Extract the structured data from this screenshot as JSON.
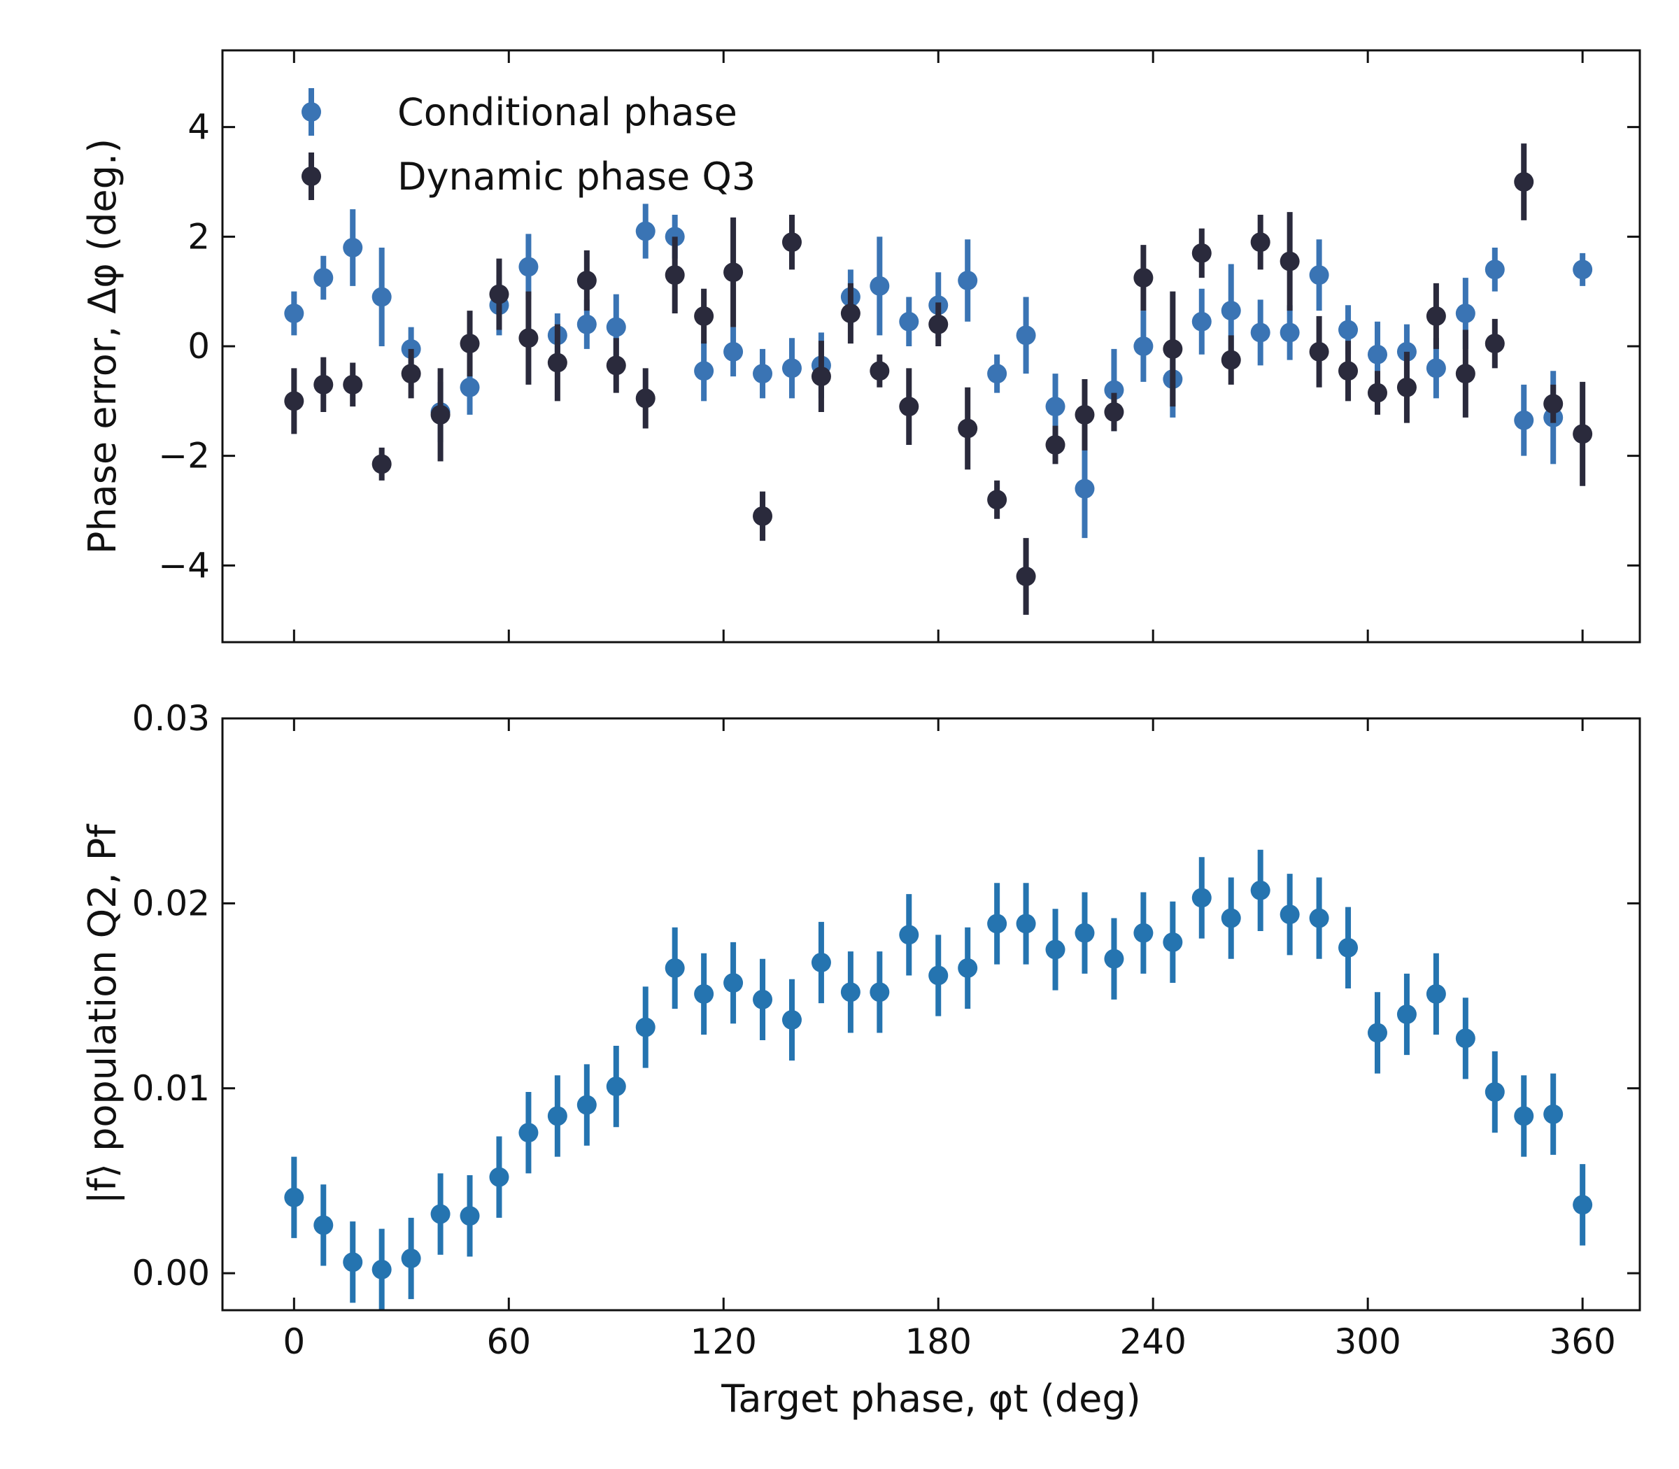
{
  "figure": {
    "x_axis_label": "Target phase, φt (deg)"
  },
  "chart_data": [
    {
      "type": "scatter",
      "panel": "top",
      "ylabel": "Phase error, Δφ (deg.)",
      "xlim": [
        -20,
        376
      ],
      "ylim": [
        -5.4,
        5.4
      ],
      "xticks": [
        0,
        60,
        120,
        180,
        240,
        300,
        360
      ],
      "yticks": [
        -4,
        -2,
        0,
        2,
        4
      ],
      "ytick_labels": [
        "−4",
        "−2",
        "0",
        "2",
        "4"
      ],
      "show_xtick_labels": false,
      "grid": false,
      "legend_placement": "upper-left",
      "error_bars": true,
      "series": [
        {
          "name": "Conditional phase",
          "color": "#3a74b4",
          "x": [
            0,
            8.2,
            16.4,
            24.5,
            32.7,
            40.9,
            49.1,
            57.3,
            65.5,
            73.6,
            81.8,
            90,
            98.2,
            106.4,
            114.5,
            122.7,
            130.9,
            139.1,
            147.3,
            155.5,
            163.6,
            171.8,
            180,
            188.2,
            196.4,
            204.5,
            212.7,
            220.9,
            229.1,
            237.3,
            245.5,
            253.6,
            261.8,
            270,
            278.2,
            286.4,
            294.5,
            302.7,
            310.9,
            319.1,
            327.3,
            335.5,
            343.6,
            351.8,
            360
          ],
          "y": [
            0.6,
            1.25,
            1.8,
            0.9,
            -0.05,
            -1.2,
            -0.75,
            0.75,
            1.45,
            0.2,
            0.4,
            0.35,
            2.1,
            2.0,
            -0.45,
            -0.1,
            -0.5,
            -0.4,
            -0.35,
            0.9,
            1.1,
            0.45,
            0.75,
            1.2,
            -0.5,
            0.2,
            -1.1,
            -2.6,
            -0.8,
            0.0,
            -0.6,
            0.45,
            0.65,
            0.25,
            0.25,
            1.3,
            0.3,
            -0.15,
            -0.1,
            -0.4,
            0.6,
            1.4,
            -1.35,
            -1.3,
            1.4
          ],
          "yerr": [
            0.4,
            0.4,
            0.7,
            0.9,
            0.4,
            0.55,
            0.5,
            0.55,
            0.6,
            0.4,
            0.45,
            0.6,
            0.5,
            0.4,
            0.55,
            0.45,
            0.45,
            0.55,
            0.6,
            0.5,
            0.9,
            0.45,
            0.6,
            0.75,
            0.35,
            0.7,
            0.6,
            0.9,
            0.75,
            0.65,
            0.7,
            0.6,
            0.85,
            0.6,
            0.5,
            0.65,
            0.45,
            0.6,
            0.5,
            0.55,
            0.65,
            0.4,
            0.65,
            0.85,
            0.3
          ]
        },
        {
          "name": "Dynamic phase Q3",
          "color": "#2a2a3c",
          "x": [
            0,
            8.2,
            16.4,
            24.5,
            32.7,
            40.9,
            49.1,
            57.3,
            65.5,
            73.6,
            81.8,
            90,
            98.2,
            106.4,
            114.5,
            122.7,
            130.9,
            139.1,
            147.3,
            155.5,
            163.6,
            171.8,
            180,
            188.2,
            196.4,
            204.5,
            212.7,
            220.9,
            229.1,
            237.3,
            245.5,
            253.6,
            261.8,
            270,
            278.2,
            286.4,
            294.5,
            302.7,
            310.9,
            319.1,
            327.3,
            335.5,
            343.6,
            351.8,
            360
          ],
          "y": [
            -1.0,
            -0.7,
            -0.7,
            -2.15,
            -0.5,
            -1.25,
            0.05,
            0.95,
            0.15,
            -0.3,
            1.2,
            -0.35,
            -0.95,
            1.3,
            0.55,
            1.35,
            -3.1,
            1.9,
            -0.55,
            0.6,
            -0.45,
            -1.1,
            0.4,
            -1.5,
            -2.8,
            -4.2,
            -1.8,
            -1.25,
            -1.2,
            1.25,
            -0.05,
            1.7,
            -0.25,
            1.9,
            1.55,
            -0.1,
            -0.45,
            -0.85,
            -0.75,
            0.55,
            -0.5,
            0.05,
            3.0,
            -1.05,
            -1.6
          ],
          "yerr": [
            0.6,
            0.5,
            0.4,
            0.3,
            0.45,
            0.85,
            0.6,
            0.65,
            0.85,
            0.7,
            0.55,
            0.5,
            0.55,
            0.7,
            0.5,
            1.0,
            0.45,
            0.5,
            0.65,
            0.55,
            0.3,
            0.7,
            0.4,
            0.75,
            0.35,
            0.7,
            0.35,
            0.65,
            0.35,
            0.6,
            1.05,
            0.45,
            0.45,
            0.5,
            0.9,
            0.65,
            0.55,
            0.4,
            0.65,
            0.6,
            0.8,
            0.45,
            0.7,
            0.35,
            0.95
          ]
        }
      ]
    },
    {
      "type": "scatter",
      "panel": "bottom",
      "ylabel": "|f⟩ population Q2, Pf",
      "xlabel": "Target phase, φt (deg)",
      "xlim": [
        -20,
        376
      ],
      "ylim": [
        -0.002,
        0.03
      ],
      "xticks": [
        0,
        60,
        120,
        180,
        240,
        300,
        360
      ],
      "yticks": [
        0.0,
        0.01,
        0.02,
        0.03
      ],
      "ytick_labels": [
        "0.00",
        "0.01",
        "0.02",
        "0.03"
      ],
      "show_xtick_labels": true,
      "grid": false,
      "error_bars": true,
      "series": [
        {
          "name": "",
          "color": "#2574b0",
          "x": [
            0,
            8.2,
            16.4,
            24.5,
            32.7,
            40.9,
            49.1,
            57.3,
            65.5,
            73.6,
            81.8,
            90,
            98.2,
            106.4,
            114.5,
            122.7,
            130.9,
            139.1,
            147.3,
            155.5,
            163.6,
            171.8,
            180,
            188.2,
            196.4,
            204.5,
            212.7,
            220.9,
            229.1,
            237.3,
            245.5,
            253.6,
            261.8,
            270,
            278.2,
            286.4,
            294.5,
            302.7,
            310.9,
            319.1,
            327.3,
            335.5,
            343.6,
            351.8,
            360
          ],
          "y": [
            0.0041,
            0.0026,
            0.0006,
            0.0002,
            0.0008,
            0.0032,
            0.0031,
            0.0052,
            0.0076,
            0.0085,
            0.0091,
            0.0101,
            0.0133,
            0.0165,
            0.0151,
            0.0157,
            0.0148,
            0.0137,
            0.0168,
            0.0152,
            0.0152,
            0.0183,
            0.0161,
            0.0165,
            0.0189,
            0.0189,
            0.0175,
            0.0184,
            0.017,
            0.0184,
            0.0179,
            0.0203,
            0.0192,
            0.0207,
            0.0194,
            0.0192,
            0.0176,
            0.013,
            0.014,
            0.0151,
            0.0127,
            0.0098,
            0.0085,
            0.0086,
            0.0037
          ],
          "yerr": [
            0.0022,
            0.0022,
            0.0022,
            0.0022,
            0.0022,
            0.0022,
            0.0022,
            0.0022,
            0.0022,
            0.0022,
            0.0022,
            0.0022,
            0.0022,
            0.0022,
            0.0022,
            0.0022,
            0.0022,
            0.0022,
            0.0022,
            0.0022,
            0.0022,
            0.0022,
            0.0022,
            0.0022,
            0.0022,
            0.0022,
            0.0022,
            0.0022,
            0.0022,
            0.0022,
            0.0022,
            0.0022,
            0.0022,
            0.0022,
            0.0022,
            0.0022,
            0.0022,
            0.0022,
            0.0022,
            0.0022,
            0.0022,
            0.0022,
            0.0022,
            0.0022,
            0.0022
          ]
        }
      ]
    }
  ]
}
